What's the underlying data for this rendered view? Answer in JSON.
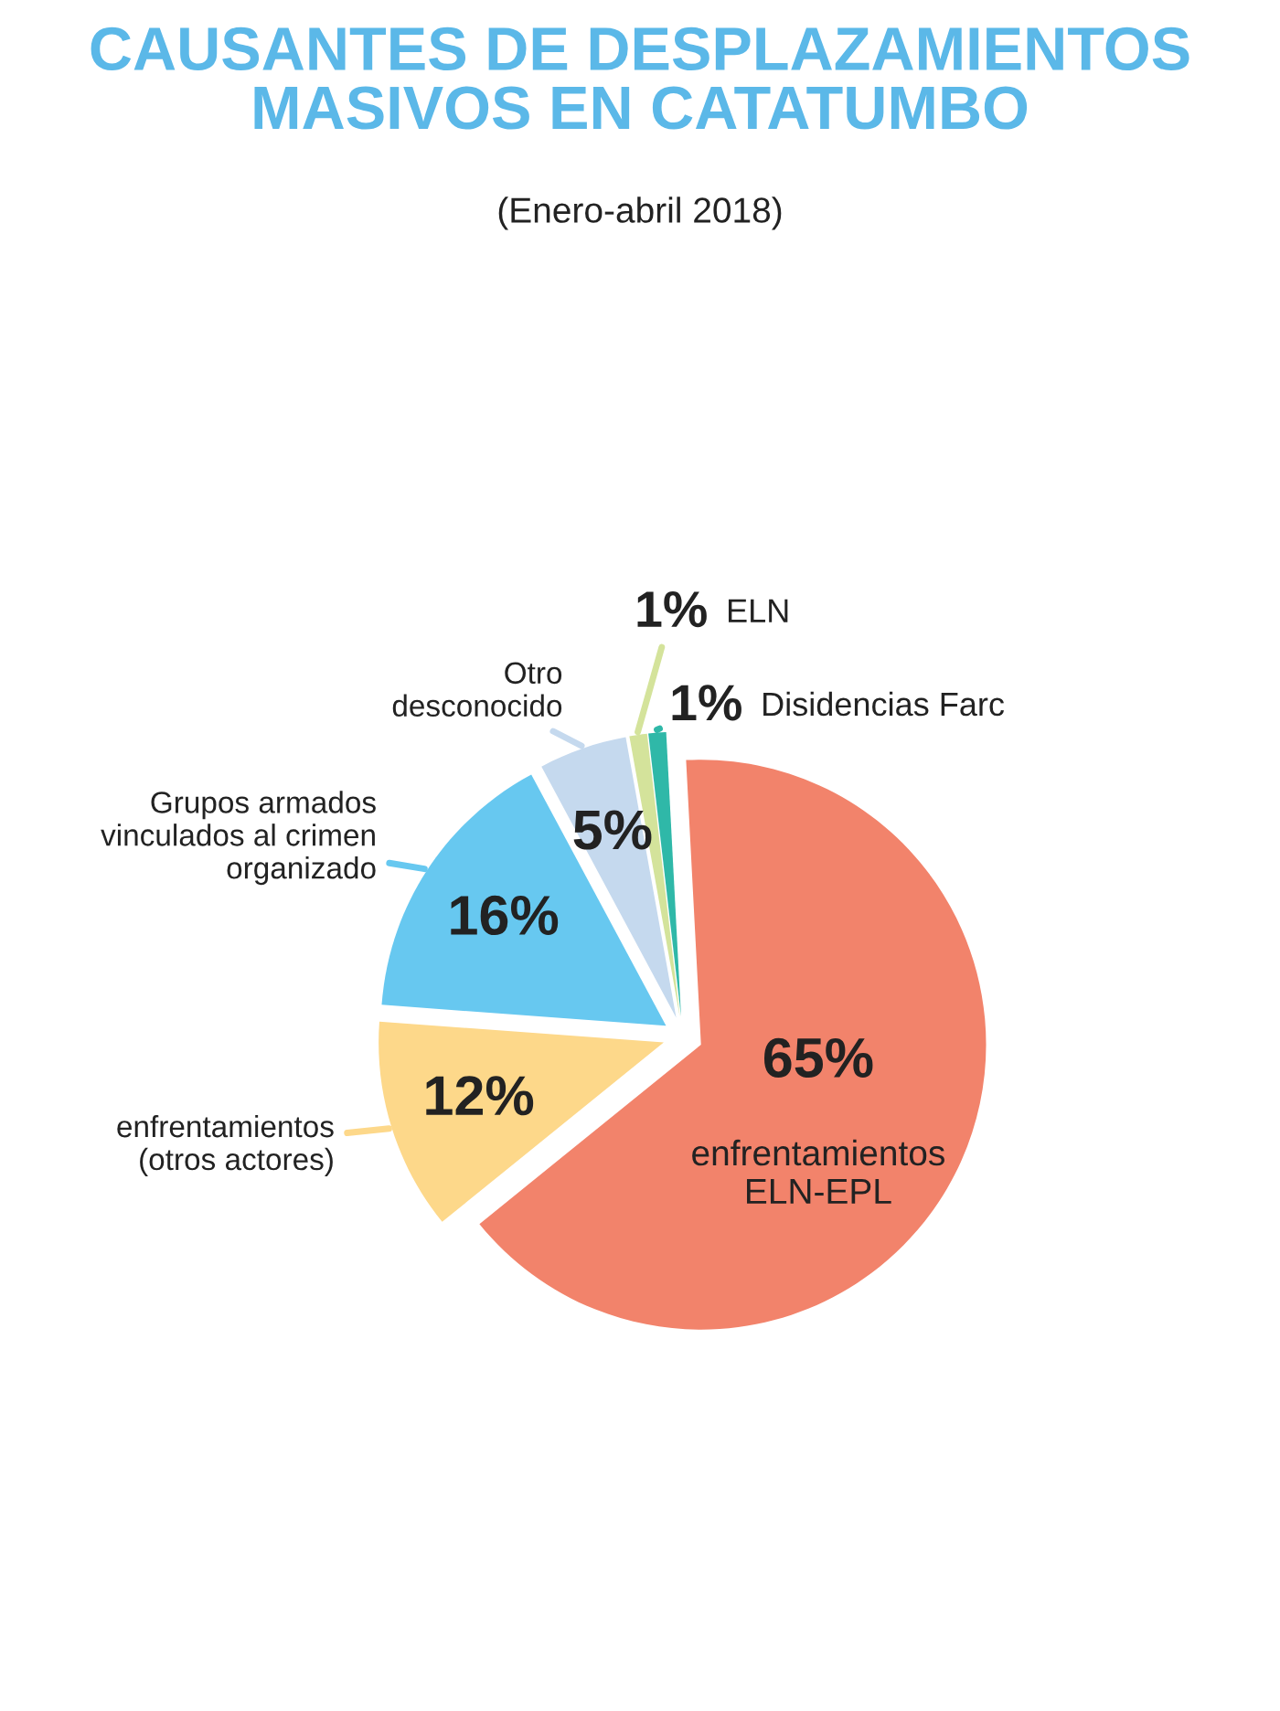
{
  "chart_data": {
    "type": "pie",
    "title": "CAUSANTES DE DESPLAZAMIENTOS\nMASIVOS EN CATATUMBO",
    "subtitle": "(Enero-abril 2018)",
    "categories": [
      "enfrentamientos\nELN-EPL",
      "enfrentamientos\n(otros actores)",
      "Grupos armados\nvinculados al crimen\norganizado",
      "Otro\ndesconocido",
      "ELN",
      "Disidencias Farc"
    ],
    "values": [
      65,
      12,
      16,
      5,
      1,
      1
    ],
    "value_labels": [
      "65%",
      "12%",
      "16%",
      "5%",
      "1%",
      "1%"
    ],
    "colors": [
      "#f2836b",
      "#fdd88a",
      "#67c8f0",
      "#c5d9ee",
      "#d4e39b",
      "#2fb8a8"
    ]
  }
}
